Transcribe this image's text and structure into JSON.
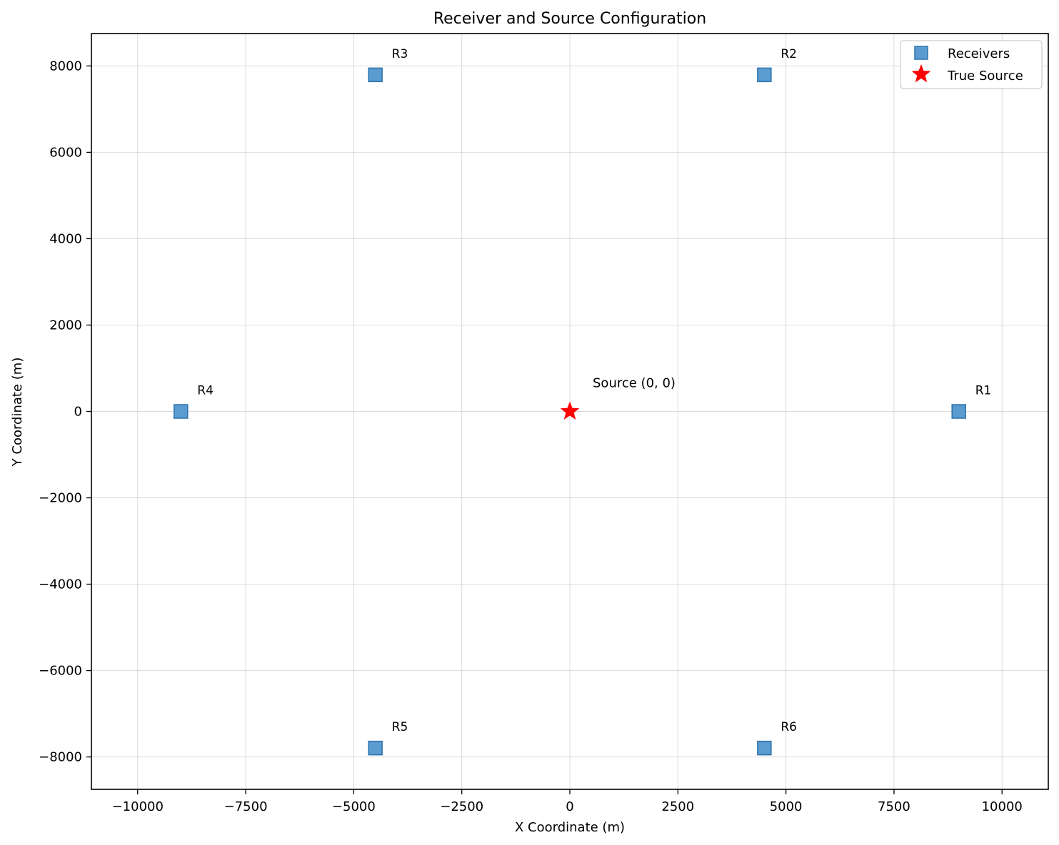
{
  "chart_data": {
    "type": "scatter",
    "title": "Receiver and Source Configuration",
    "xlabel": "X Coordinate (m)",
    "ylabel": "Y Coordinate (m)",
    "xlim": [
      -11070,
      11070
    ],
    "ylim": [
      -8750,
      8750
    ],
    "xticks": [
      -10000,
      -7500,
      -5000,
      -2500,
      0,
      2500,
      5000,
      7500,
      10000
    ],
    "xtick_labels": [
      "−10000",
      "−7500",
      "−5000",
      "−2500",
      "0",
      "2500",
      "5000",
      "7500",
      "10000"
    ],
    "yticks": [
      -8000,
      -6000,
      -4000,
      -2000,
      0,
      2000,
      4000,
      6000,
      8000
    ],
    "ytick_labels": [
      "−8000",
      "−6000",
      "−4000",
      "−2000",
      "0",
      "2000",
      "4000",
      "6000",
      "8000"
    ],
    "grid": true,
    "legend": {
      "placement": "top-right",
      "entries": [
        "Receivers",
        "True Source"
      ]
    },
    "series": [
      {
        "name": "Receivers",
        "marker": "square",
        "color": "#5b9bcf",
        "edge_color": "#2d73ad",
        "points": [
          {
            "label": "R1",
            "x": 9000,
            "y": 0
          },
          {
            "label": "R2",
            "x": 4500,
            "y": 7794
          },
          {
            "label": "R3",
            "x": -4500,
            "y": 7794
          },
          {
            "label": "R4",
            "x": -9000,
            "y": 0
          },
          {
            "label": "R5",
            "x": -4500,
            "y": -7794
          },
          {
            "label": "R6",
            "x": 4500,
            "y": -7794
          }
        ]
      },
      {
        "name": "True Source",
        "marker": "star",
        "color": "#ff0000",
        "points": [
          {
            "label": "Source (0, 0)",
            "x": 0,
            "y": 0
          }
        ]
      }
    ]
  }
}
